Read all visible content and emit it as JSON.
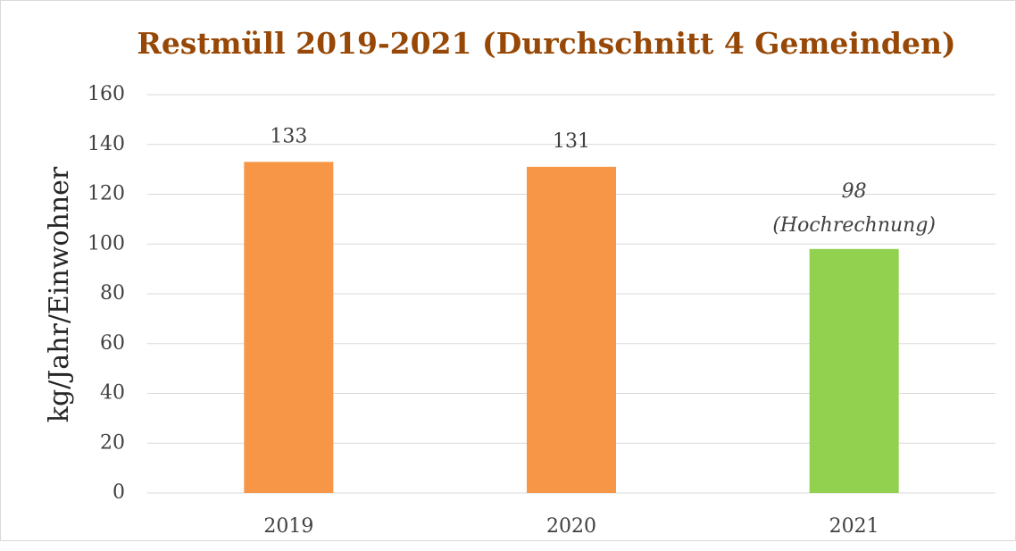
{
  "chart_data": {
    "type": "bar",
    "title": "Restmüll 2019-2021 (Durchschnitt 4 Gemeinden)",
    "y_label": "kg/Jahr/Einwohner",
    "categories": [
      "2019",
      "2020",
      "2021"
    ],
    "values": [
      133,
      131,
      98
    ],
    "colors": [
      "#f79646",
      "#f79646",
      "#92d050"
    ],
    "annotations": [
      null,
      null,
      "(Hochrechnung)"
    ],
    "ylim": [
      0,
      160
    ],
    "yticks": [
      0,
      20,
      40,
      60,
      80,
      100,
      120,
      140,
      160
    ],
    "grid": true
  }
}
